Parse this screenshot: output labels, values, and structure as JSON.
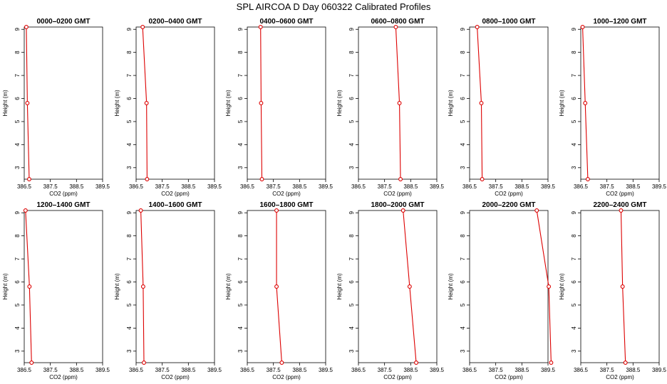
{
  "title": "SPL AIRCOA D  Day 060322  Calibrated Profiles",
  "colors": {
    "series": "#dd0000",
    "axis": "#000000",
    "background": "#ffffff"
  },
  "chart_data": [
    {
      "type": "line",
      "title": "0000–0200 GMT",
      "xlabel": "CO2 (ppm)",
      "ylabel": "Height (m)",
      "xlim": [
        386.5,
        389.5
      ],
      "ylim": [
        2.5,
        9.1
      ],
      "xticks": [
        386.5,
        387.5,
        388.5,
        389.5
      ],
      "yticks": [
        3,
        4,
        5,
        6,
        7,
        8,
        9
      ],
      "x": [
        386.58,
        386.62,
        386.69
      ],
      "y": [
        9.1,
        5.8,
        2.5
      ]
    },
    {
      "type": "line",
      "title": "0200–0400 GMT",
      "xlabel": "CO2 (ppm)",
      "ylabel": "Height (m)",
      "xlim": [
        386.5,
        389.5
      ],
      "ylim": [
        2.5,
        9.1
      ],
      "xticks": [
        386.5,
        387.5,
        388.5,
        389.5
      ],
      "yticks": [
        3,
        4,
        5,
        6,
        7,
        8,
        9
      ],
      "x": [
        386.75,
        386.9,
        386.92
      ],
      "y": [
        9.1,
        5.8,
        2.5
      ]
    },
    {
      "type": "line",
      "title": "0400–0600 GMT",
      "xlabel": "CO2 (ppm)",
      "ylabel": "Height (m)",
      "xlim": [
        386.5,
        389.5
      ],
      "ylim": [
        2.5,
        9.1
      ],
      "xticks": [
        386.5,
        387.5,
        388.5,
        389.5
      ],
      "yticks": [
        3,
        4,
        5,
        6,
        7,
        8,
        9
      ],
      "x": [
        387.01,
        387.03,
        387.06
      ],
      "y": [
        9.1,
        5.8,
        2.5
      ]
    },
    {
      "type": "line",
      "title": "0600–0800 GMT",
      "xlabel": "CO2 (ppm)",
      "ylabel": "Height (m)",
      "xlim": [
        386.5,
        389.5
      ],
      "ylim": [
        2.5,
        9.1
      ],
      "xticks": [
        386.5,
        387.5,
        388.5,
        389.5
      ],
      "yticks": [
        3,
        4,
        5,
        6,
        7,
        8,
        9
      ],
      "x": [
        387.93,
        388.07,
        388.11
      ],
      "y": [
        9.1,
        5.8,
        2.5
      ]
    },
    {
      "type": "line",
      "title": "0800–1000 GMT",
      "xlabel": "CO2 (ppm)",
      "ylabel": "Height (m)",
      "xlim": [
        386.5,
        389.5
      ],
      "ylim": [
        2.5,
        9.1
      ],
      "xticks": [
        386.5,
        387.5,
        388.5,
        389.5
      ],
      "yticks": [
        3,
        4,
        5,
        6,
        7,
        8,
        9
      ],
      "x": [
        386.79,
        386.95,
        386.98
      ],
      "y": [
        9.1,
        5.8,
        2.5
      ]
    },
    {
      "type": "line",
      "title": "1000–1200 GMT",
      "xlabel": "CO2 (ppm)",
      "ylabel": "Height (m)",
      "xlim": [
        386.5,
        389.5
      ],
      "ylim": [
        2.5,
        9.1
      ],
      "xticks": [
        386.5,
        387.5,
        388.5,
        389.5
      ],
      "yticks": [
        3,
        4,
        5,
        6,
        7,
        8,
        9
      ],
      "x": [
        386.57,
        386.67,
        386.77
      ],
      "y": [
        9.1,
        5.8,
        2.5
      ]
    },
    {
      "type": "line",
      "title": "1200–1400 GMT",
      "xlabel": "CO2 (ppm)",
      "ylabel": "Height (m)",
      "xlim": [
        386.5,
        389.5
      ],
      "ylim": [
        2.5,
        9.1
      ],
      "xticks": [
        386.5,
        387.5,
        388.5,
        389.5
      ],
      "yticks": [
        3,
        4,
        5,
        6,
        7,
        8,
        9
      ],
      "x": [
        386.55,
        386.7,
        386.78
      ],
      "y": [
        9.1,
        5.8,
        2.5
      ]
    },
    {
      "type": "line",
      "title": "1400–1600 GMT",
      "xlabel": "CO2 (ppm)",
      "ylabel": "Height (m)",
      "xlim": [
        386.5,
        389.5
      ],
      "ylim": [
        2.5,
        9.1
      ],
      "xticks": [
        386.5,
        387.5,
        388.5,
        389.5
      ],
      "yticks": [
        3,
        4,
        5,
        6,
        7,
        8,
        9
      ],
      "x": [
        386.68,
        386.77,
        386.8
      ],
      "y": [
        9.1,
        5.8,
        2.5
      ]
    },
    {
      "type": "line",
      "title": "1600–1800 GMT",
      "xlabel": "CO2 (ppm)",
      "ylabel": "Height (m)",
      "xlim": [
        386.5,
        389.5
      ],
      "ylim": [
        2.5,
        9.1
      ],
      "xticks": [
        386.5,
        387.5,
        388.5,
        389.5
      ],
      "yticks": [
        3,
        4,
        5,
        6,
        7,
        8,
        9
      ],
      "x": [
        387.62,
        387.62,
        387.82
      ],
      "y": [
        9.1,
        5.8,
        2.5
      ]
    },
    {
      "type": "line",
      "title": "1800–2000 GMT",
      "xlabel": "CO2 (ppm)",
      "ylabel": "Height (m)",
      "xlim": [
        386.5,
        389.5
      ],
      "ylim": [
        2.5,
        9.1
      ],
      "xticks": [
        386.5,
        387.5,
        388.5,
        389.5
      ],
      "yticks": [
        3,
        4,
        5,
        6,
        7,
        8,
        9
      ],
      "x": [
        388.21,
        388.46,
        388.71
      ],
      "y": [
        9.1,
        5.8,
        2.5
      ]
    },
    {
      "type": "line",
      "title": "2000–2200 GMT",
      "xlabel": "CO2 (ppm)",
      "ylabel": "Height (m)",
      "xlim": [
        386.5,
        389.5
      ],
      "ylim": [
        2.5,
        9.1
      ],
      "xticks": [
        386.5,
        387.5,
        388.5,
        389.5
      ],
      "yticks": [
        3,
        4,
        5,
        6,
        7,
        8,
        9
      ],
      "x": [
        389.07,
        389.53,
        389.62
      ],
      "y": [
        9.1,
        5.8,
        2.5
      ]
    },
    {
      "type": "line",
      "title": "2200–2400 GMT",
      "xlabel": "CO2 (ppm)",
      "ylabel": "Height (m)",
      "xlim": [
        386.5,
        389.5
      ],
      "ylim": [
        2.5,
        9.1
      ],
      "xticks": [
        386.5,
        387.5,
        388.5,
        389.5
      ],
      "yticks": [
        3,
        4,
        5,
        6,
        7,
        8,
        9
      ],
      "x": [
        388.04,
        388.1,
        388.21
      ],
      "y": [
        9.1,
        5.8,
        2.5
      ]
    }
  ]
}
